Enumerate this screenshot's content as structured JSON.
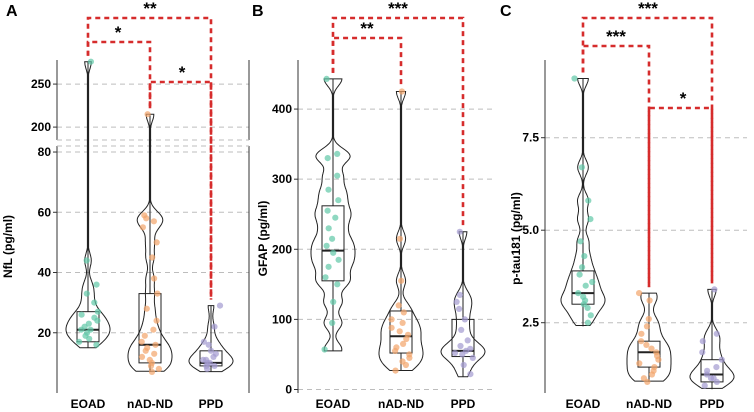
{
  "chart_data": [
    {
      "panel": "A",
      "type": "violin",
      "ylabel": "NfL (pg/ml)",
      "categories": [
        "EOAD",
        "nAD-ND",
        "PPD"
      ],
      "colors": [
        "#5fc8a6",
        "#f2a46a",
        "#a39ad0"
      ],
      "axis_break": true,
      "lower_ylim": [
        0,
        82
      ],
      "upper_ylim": [
        185,
        278
      ],
      "yticks_lower": [
        20,
        40,
        60,
        80
      ],
      "yticks_upper": [
        200,
        250
      ],
      "series": [
        {
          "name": "EOAD",
          "min": 15,
          "q1": 17,
          "median": 21,
          "q3": 27,
          "max": 276,
          "points": [
            16,
            17,
            18,
            19,
            20,
            21,
            21,
            22,
            23,
            24,
            25,
            26,
            27,
            30,
            33,
            36,
            44,
            276
          ]
        },
        {
          "name": "nAD-ND",
          "min": 7,
          "q1": 10,
          "median": 16,
          "q3": 33,
          "max": 215,
          "points": [
            7,
            8,
            9,
            10,
            11,
            12,
            13,
            14,
            15,
            16,
            17,
            19,
            21,
            24,
            28,
            33,
            38,
            45,
            50,
            55,
            57,
            58,
            59,
            215
          ]
        },
        {
          "name": "PPD",
          "min": 7,
          "q1": 9,
          "median": 10,
          "q3": 14,
          "max": 29,
          "points": [
            8,
            9,
            9,
            10,
            10,
            11,
            11,
            12,
            13,
            14,
            16,
            17,
            22,
            29
          ]
        }
      ],
      "comparisons": [
        {
          "groups": [
            "EOAD",
            "nAD-ND"
          ],
          "label": "*"
        },
        {
          "groups": [
            "nAD-ND",
            "PPD"
          ],
          "label": "*"
        },
        {
          "groups": [
            "EOAD",
            "PPD"
          ],
          "label": "**"
        }
      ]
    },
    {
      "panel": "B",
      "type": "violin",
      "ylabel": "GFAP (pg/ml)",
      "categories": [
        "EOAD",
        "nAD-ND",
        "PPD"
      ],
      "colors": [
        "#5fc8a6",
        "#f2a46a",
        "#a39ad0"
      ],
      "ylim": [
        -5,
        470
      ],
      "yticks": [
        0,
        100,
        200,
        300,
        400
      ],
      "series": [
        {
          "name": "EOAD",
          "min": 55,
          "q1": 155,
          "median": 198,
          "q3": 262,
          "max": 443,
          "points": [
            57,
            95,
            125,
            150,
            160,
            175,
            185,
            195,
            205,
            215,
            230,
            245,
            255,
            270,
            285,
            305,
            330,
            336,
            443
          ]
        },
        {
          "name": "nAD-ND",
          "min": 27,
          "q1": 52,
          "median": 76,
          "q3": 112,
          "max": 425,
          "points": [
            27,
            35,
            40,
            45,
            50,
            55,
            60,
            65,
            72,
            78,
            83,
            88,
            95,
            100,
            110,
            120,
            155,
            215,
            425
          ]
        },
        {
          "name": "PPD",
          "min": 18,
          "q1": 47,
          "median": 55,
          "q3": 100,
          "max": 225,
          "points": [
            22,
            35,
            45,
            50,
            52,
            55,
            58,
            62,
            70,
            85,
            100,
            115,
            125,
            135,
            225
          ]
        }
      ],
      "comparisons": [
        {
          "groups": [
            "EOAD",
            "nAD-ND"
          ],
          "label": "**"
        },
        {
          "groups": [
            "EOAD",
            "PPD"
          ],
          "label": "***"
        }
      ]
    },
    {
      "panel": "C",
      "type": "violin",
      "ylabel": "p-tau181 (pg/ml)",
      "categories": [
        "EOAD",
        "nAD-ND",
        "PPD"
      ],
      "colors": [
        "#5fc8a6",
        "#f2a46a",
        "#a39ad0"
      ],
      "ylim": [
        0.6,
        9.6
      ],
      "yticks": [
        2.5,
        5.0,
        7.5
      ],
      "series": [
        {
          "name": "EOAD",
          "min": 2.4,
          "q1": 3.0,
          "median": 3.3,
          "q3": 3.9,
          "max": 9.1,
          "points": [
            2.5,
            2.7,
            2.9,
            3.0,
            3.1,
            3.2,
            3.3,
            3.5,
            3.6,
            3.8,
            4.0,
            4.3,
            4.7,
            5.3,
            5.8,
            6.7,
            9.1
          ]
        },
        {
          "name": "nAD-ND",
          "min": 0.9,
          "q1": 1.3,
          "median": 1.7,
          "q3": 2.0,
          "max": 3.3,
          "points": [
            0.9,
            1.0,
            1.1,
            1.2,
            1.3,
            1.4,
            1.5,
            1.6,
            1.7,
            1.8,
            1.9,
            2.0,
            2.2,
            2.4,
            2.6,
            3.1,
            3.3
          ]
        },
        {
          "name": "PPD",
          "min": 0.7,
          "q1": 0.9,
          "median": 1.1,
          "q3": 1.5,
          "max": 3.4,
          "points": [
            0.8,
            0.9,
            1.0,
            1.0,
            1.1,
            1.2,
            1.3,
            1.5,
            1.7,
            2.0,
            2.2,
            3.4
          ]
        }
      ],
      "comparisons": [
        {
          "groups": [
            "EOAD",
            "nAD-ND"
          ],
          "label": "***"
        },
        {
          "groups": [
            "nAD-ND",
            "PPD"
          ],
          "label": "*"
        },
        {
          "groups": [
            "EOAD",
            "PPD"
          ],
          "label": "***"
        }
      ]
    }
  ]
}
